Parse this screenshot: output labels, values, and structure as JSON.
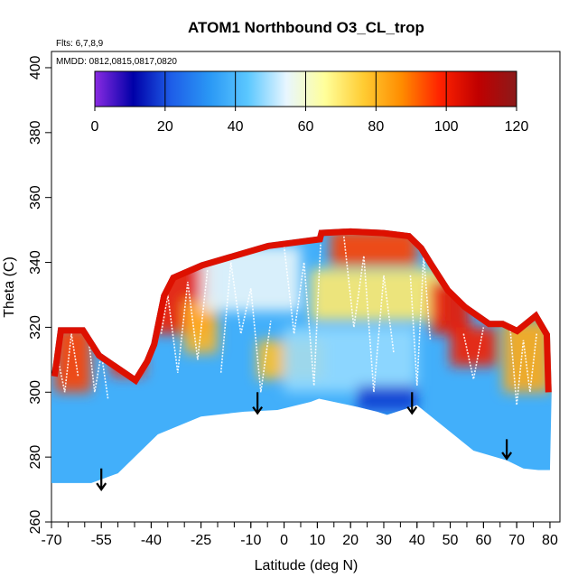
{
  "chart_data": {
    "type": "heatmap",
    "title": "ATOM1 Northbound O3_CL_trop",
    "annotations": [
      "Flts: 6,7,8,9",
      "MMDD: 0812,0815,0817,0820"
    ],
    "xlabel": "Latitude (deg N)",
    "ylabel": "Theta (C)",
    "xlim": [
      -70,
      83
    ],
    "ylim": [
      260,
      405
    ],
    "x_ticks": [
      -70,
      -55,
      -40,
      -25,
      -10,
      0,
      10,
      20,
      30,
      40,
      50,
      60,
      70,
      80
    ],
    "x_tick_labels": [
      "-70",
      "-55",
      "-40",
      "-25",
      "-10",
      "0",
      "10",
      "20",
      "30",
      "40",
      "50",
      "60",
      "70",
      "80"
    ],
    "y_ticks": [
      260,
      280,
      300,
      320,
      340,
      360,
      380,
      400
    ],
    "y_tick_labels": [
      "260",
      "280",
      "300",
      "320",
      "340",
      "360",
      "380",
      "400"
    ],
    "colorbar": {
      "min": 0,
      "max": 120,
      "ticks": [
        0,
        20,
        40,
        60,
        80,
        100,
        120
      ],
      "tick_labels": [
        "0",
        "20",
        "40",
        "60",
        "80",
        "100",
        "120"
      ],
      "colors": [
        "#8a2be2",
        "#0000a8",
        "#1e5ee8",
        "#2a98f5",
        "#5cc8ff",
        "#e8f6ff",
        "#ffff9a",
        "#ffcc33",
        "#ff8c00",
        "#ff2200",
        "#c00000",
        "#8b1a1a"
      ]
    },
    "bottom_boundary": [
      [
        -70,
        272
      ],
      [
        -63,
        272
      ],
      [
        -58,
        272
      ],
      [
        -50,
        275
      ],
      [
        -38,
        287
      ],
      [
        -25,
        292.5
      ],
      [
        -12,
        294
      ],
      [
        -2,
        294.5
      ],
      [
        8,
        297
      ],
      [
        10.5,
        298
      ],
      [
        22,
        295.5
      ],
      [
        28,
        294
      ],
      [
        31,
        293
      ],
      [
        40,
        296
      ],
      [
        57,
        282
      ],
      [
        67,
        279
      ],
      [
        72,
        276.5
      ],
      [
        76.5,
        276
      ],
      [
        80,
        276
      ]
    ],
    "top_boundary": [
      [
        -70,
        305
      ],
      [
        -68,
        320
      ],
      [
        -60,
        320
      ],
      [
        -55,
        312
      ],
      [
        -45,
        305
      ],
      [
        -42,
        310
      ],
      [
        -40,
        315
      ],
      [
        -37,
        330
      ],
      [
        -34,
        336
      ],
      [
        -25,
        340
      ],
      [
        -15,
        343
      ],
      [
        -5,
        346
      ],
      [
        10,
        348
      ],
      [
        10.5,
        350
      ],
      [
        20,
        350.5
      ],
      [
        30,
        350
      ],
      [
        38,
        349
      ],
      [
        42,
        345
      ],
      [
        45,
        340
      ],
      [
        50,
        332
      ],
      [
        55,
        327
      ],
      [
        62,
        322
      ],
      [
        66,
        322
      ],
      [
        70,
        320
      ],
      [
        76,
        325
      ],
      [
        80,
        318
      ],
      [
        80.5,
        300
      ]
    ],
    "regions": [
      {
        "x": [
          -69,
          -58
        ],
        "y": [
          300,
          320
        ],
        "value": 95
      },
      {
        "x": [
          -52,
          -42
        ],
        "y": [
          305,
          312
        ],
        "value": 98
      },
      {
        "x": [
          -40,
          -22
        ],
        "y": [
          318,
          340
        ],
        "value": 100
      },
      {
        "x": [
          -30,
          -20
        ],
        "y": [
          312,
          328
        ],
        "value": 80
      },
      {
        "x": [
          -8,
          12
        ],
        "y": [
          304,
          316
        ],
        "value": 78
      },
      {
        "x": [
          8,
          48
        ],
        "y": [
          322,
          338
        ],
        "value": 70
      },
      {
        "x": [
          14,
          40
        ],
        "y": [
          339,
          350
        ],
        "value": 95
      },
      {
        "x": [
          44,
          56
        ],
        "y": [
          318,
          334
        ],
        "value": 102
      },
      {
        "x": [
          50,
          64
        ],
        "y": [
          308,
          320
        ],
        "value": 100
      },
      {
        "x": [
          66,
          80
        ],
        "y": [
          300,
          322
        ],
        "value": 82
      },
      {
        "x": [
          -25,
          5
        ],
        "y": [
          325,
          345
        ],
        "value": 55
      },
      {
        "x": [
          0,
          40
        ],
        "y": [
          300,
          320
        ],
        "value": 48
      },
      {
        "x": [
          22,
          40
        ],
        "y": [
          294,
          302
        ],
        "value": 18
      }
    ],
    "flight_tracks": [
      {
        "x": [
          -68,
          -66,
          -64,
          -62
        ],
        "y": [
          310,
          300,
          318,
          305
        ]
      },
      {
        "x": [
          -59,
          -57,
          -55,
          -53
        ],
        "y": [
          318,
          300,
          312,
          298
        ]
      },
      {
        "x": [
          -37,
          -35,
          -32,
          -29,
          -26,
          -23
        ],
        "y": [
          318,
          330,
          306,
          334,
          310,
          338
        ]
      },
      {
        "x": [
          -19,
          -16,
          -13,
          -10,
          -7,
          -4
        ],
        "y": [
          306,
          340,
          318,
          332,
          300,
          322
        ]
      },
      {
        "x": [
          0,
          3,
          6,
          9,
          11
        ],
        "y": [
          345,
          318,
          340,
          302,
          346
        ]
      },
      {
        "x": [
          18,
          21,
          24,
          27,
          30,
          33
        ],
        "y": [
          348,
          320,
          342,
          300,
          336,
          312
        ]
      },
      {
        "x": [
          38,
          40,
          42,
          44
        ],
        "y": [
          336,
          302,
          342,
          316
        ]
      },
      {
        "x": [
          54,
          57,
          60
        ],
        "y": [
          318,
          304,
          320
        ]
      },
      {
        "x": [
          68,
          70,
          72,
          74,
          76
        ],
        "y": [
          320,
          296,
          316,
          300,
          318
        ]
      }
    ],
    "arrows": [
      {
        "x": -55,
        "y_start": 276.5,
        "y_end": 270
      },
      {
        "x": -8,
        "y_start": 300,
        "y_end": 293.5
      },
      {
        "x": 38.5,
        "y_start": 300,
        "y_end": 293.5
      },
      {
        "x": 67,
        "y_start": 285.5,
        "y_end": 279.5
      }
    ]
  }
}
